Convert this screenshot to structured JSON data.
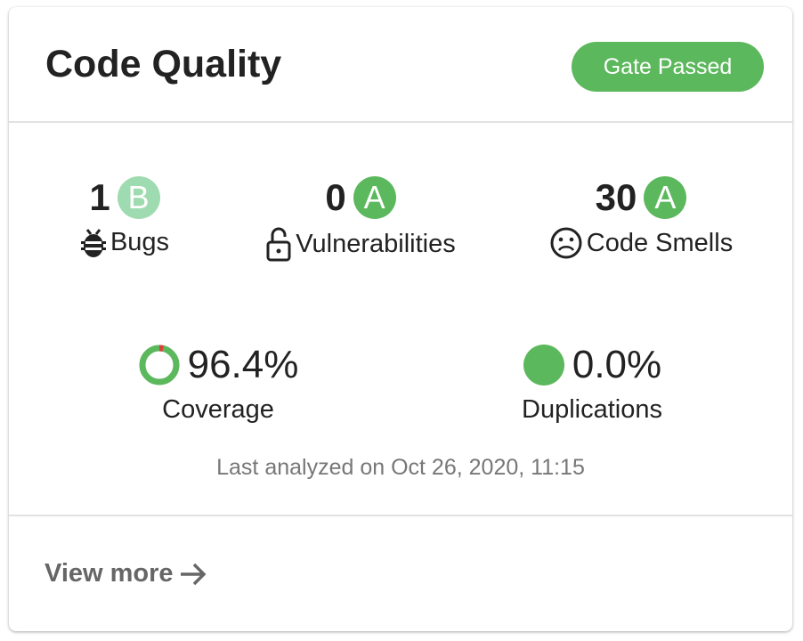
{
  "header": {
    "title": "Code Quality",
    "gate_status": "Gate Passed",
    "gate_color": "#5cb85c"
  },
  "metrics": [
    {
      "value": "1",
      "grade": "B",
      "grade_color": "#9fdbb0",
      "label": "Bugs",
      "icon": "bug-icon"
    },
    {
      "value": "0",
      "grade": "A",
      "grade_color": "#5cb85c",
      "label": "Vulnerabilities",
      "icon": "unlock-icon"
    },
    {
      "value": "30",
      "grade": "A",
      "grade_color": "#5cb85c",
      "label": "Code Smells",
      "icon": "sad-face-icon"
    }
  ],
  "coverage": {
    "value": "96.4%",
    "percent": 96.4,
    "label": "Coverage",
    "covered_color": "#5cb85c",
    "uncovered_color": "#d9413b"
  },
  "duplications": {
    "value": "0.0%",
    "label": "Duplications",
    "color": "#5cb85c"
  },
  "last_analyzed": "Last analyzed on Oct 26, 2020, 11:15",
  "footer": {
    "view_more": "View more",
    "icon": "arrow-right-icon"
  }
}
